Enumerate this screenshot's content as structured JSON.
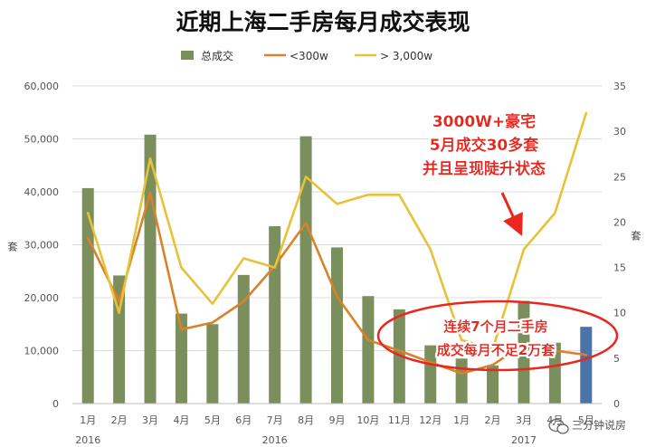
{
  "chart_data": {
    "type": "bar+line",
    "title": "近期上海二手房每月成交表现",
    "categories": [
      "1月",
      "2月",
      "3月",
      "4月",
      "5月",
      "6月",
      "7月",
      "8月",
      "9月",
      "10月",
      "11月",
      "12月",
      "1月",
      "2月",
      "3月",
      "4月",
      "5月"
    ],
    "year_labels": [
      {
        "index": 0,
        "label": "2016"
      },
      {
        "index": 6,
        "label": "2016"
      },
      {
        "index": 14,
        "label": "2017"
      }
    ],
    "left_axis": {
      "label": "套",
      "ylim": [
        0,
        60000
      ],
      "ticks": [
        "0",
        "10,000",
        "20,000",
        "30,000",
        "40,000",
        "50,000",
        "60,000"
      ]
    },
    "right_axis": {
      "label": "套",
      "ylim": [
        0,
        35
      ],
      "ticks": [
        "0",
        "5",
        "10",
        "15",
        "20",
        "25",
        "30",
        "35"
      ]
    },
    "grid": true,
    "legend_position": "top",
    "series": [
      {
        "name": "总成交",
        "type": "bar",
        "axis": "left",
        "color": "#7a8f5c",
        "highlight_color": "#4a73a8",
        "highlight_index": 16,
        "values": [
          40700,
          24200,
          50800,
          17000,
          15000,
          24300,
          33500,
          50500,
          29500,
          20300,
          17800,
          11000,
          8500,
          7200,
          19400,
          11500,
          14500
        ]
      },
      {
        "name": "<300w",
        "type": "line",
        "axis": "left",
        "color": "#d9822b",
        "values": [
          31300,
          19300,
          39800,
          14000,
          15300,
          19300,
          26000,
          34100,
          20200,
          12000,
          10000,
          7800,
          5700,
          7300,
          11200,
          10000,
          9200
        ]
      },
      {
        "name": "> 3,000w",
        "type": "line",
        "axis": "right",
        "color": "#e6c238",
        "values": [
          21,
          10,
          27,
          15,
          11,
          16,
          15,
          25,
          22,
          23,
          23,
          17,
          7,
          6,
          17,
          21,
          32
        ]
      }
    ],
    "annotations": [
      {
        "id": "luxury",
        "lines": [
          "3000W+豪宅",
          "5月成交30多套",
          "并且呈现陡升状态"
        ]
      },
      {
        "id": "below20k",
        "lines": [
          "连续7个月二手房",
          "成交每月不足2万套"
        ]
      }
    ]
  },
  "watermark": "三分钟说房"
}
